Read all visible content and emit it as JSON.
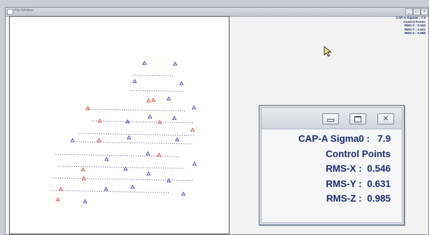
{
  "window": {
    "title": "Plot Window",
    "buttons": {
      "minimize": "_",
      "maximize": "□",
      "close": "×"
    }
  },
  "stats": {
    "sigma_label": "CAP-A Sigma0 :",
    "sigma_value": "7.9",
    "header": "Control Points",
    "rms_x_label": "RMS-X :",
    "rms_x_value": "0.546",
    "rms_y_label": "RMS-Y :",
    "rms_y_value": "0.631",
    "rms_z_label": "RMS-Z :",
    "rms_z_value": "0.985"
  },
  "legend": {
    "blue_marker_color": "#3b3fa6",
    "red_marker_color": "#d6403a",
    "strip_dot_color": "#2f2f6e"
  },
  "zoom_panel": {
    "buttons": {
      "minimize": "minimize-icon",
      "maximize": "maximize-icon",
      "close": "close-icon"
    }
  }
}
